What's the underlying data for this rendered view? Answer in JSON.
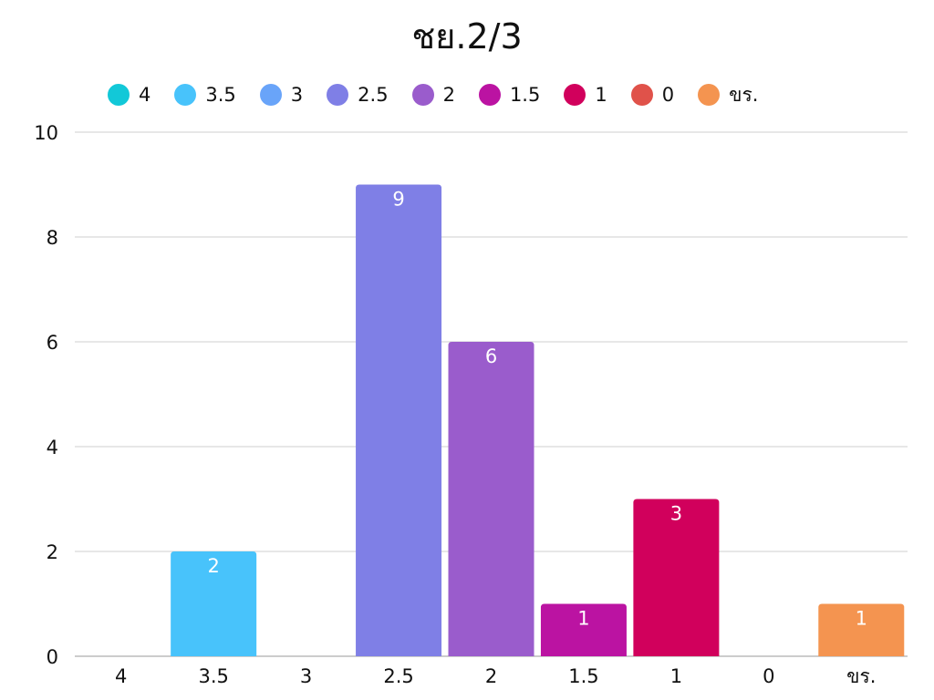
{
  "chart_data": {
    "type": "bar",
    "title": "ชย.2/3",
    "categories": [
      "4",
      "3.5",
      "3",
      "2.5",
      "2",
      "1.5",
      "1",
      "0",
      "ขร."
    ],
    "values": [
      0,
      2,
      0,
      9,
      6,
      1,
      3,
      0,
      1
    ],
    "data_labels": [
      "",
      "2",
      "",
      "9",
      "6",
      "1",
      "3",
      "",
      "1"
    ],
    "colors": [
      "#12c8d8",
      "#48c3fb",
      "#69a4f9",
      "#7f7fe6",
      "#9a5ccc",
      "#bb13a2",
      "#d1005c",
      "#e0524a",
      "#f49450"
    ],
    "legend": [
      "4",
      "3.5",
      "3",
      "2.5",
      "2",
      "1.5",
      "1",
      "0",
      "ขร."
    ],
    "legend_position": "top",
    "ylim": [
      0,
      10
    ],
    "yticks": [
      "0",
      "2",
      "4",
      "6",
      "8",
      "10"
    ],
    "grid": true,
    "xlabel": "",
    "ylabel": ""
  }
}
